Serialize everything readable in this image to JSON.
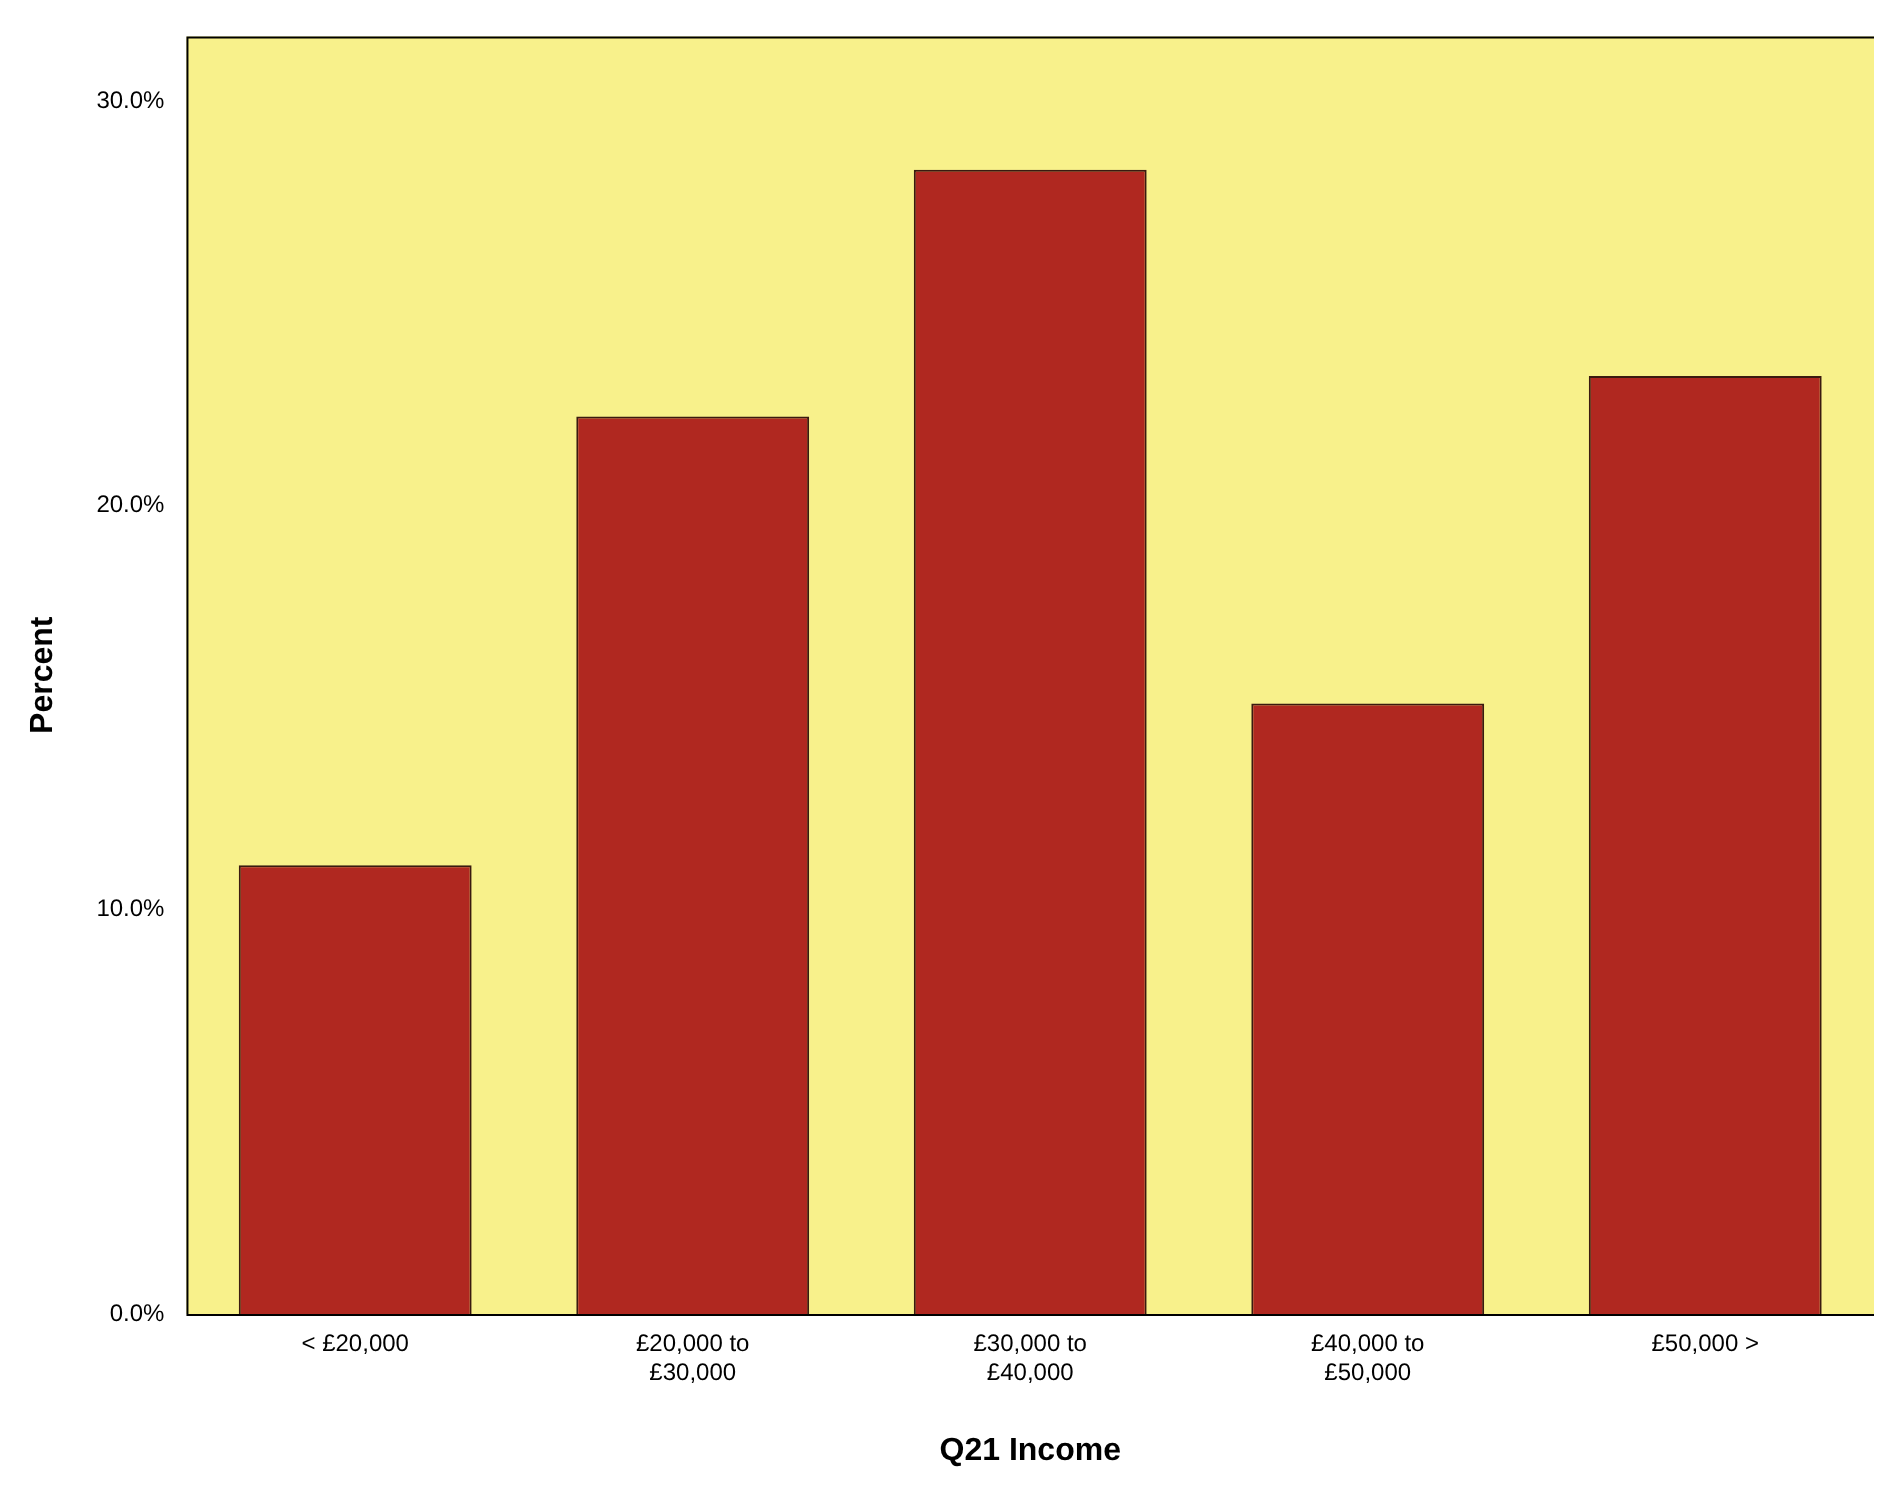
{
  "chart_data": {
    "type": "bar",
    "xlabel": "Q21 Income",
    "ylabel": "Percent",
    "categories": [
      "< £20,000",
      "£20,000 to £30,000",
      "£30,000 to £40,000",
      "£40,000 to £50,000",
      "£50,000 >"
    ],
    "values": [
      11.1,
      22.2,
      28.3,
      15.1,
      23.2
    ],
    "color": "#b02820",
    "ylim": [
      0,
      31.6
    ],
    "yticks": [
      {
        "value": 0,
        "label": "0.0%"
      },
      {
        "value": 10,
        "label": "10.0%"
      },
      {
        "value": 20,
        "label": "20.0%"
      },
      {
        "value": 30,
        "label": "30.0%"
      }
    ],
    "grid": false,
    "legend": false
  }
}
